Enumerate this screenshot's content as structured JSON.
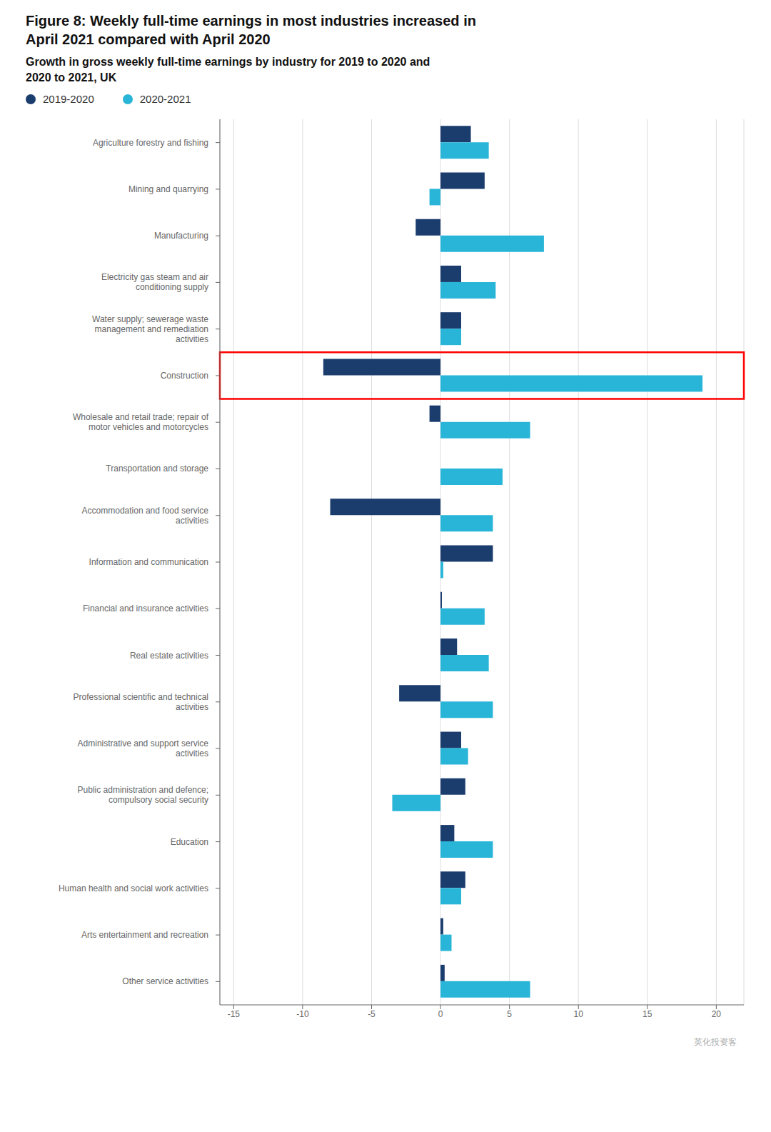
{
  "chart_data": {
    "type": "bar",
    "orientation": "horizontal",
    "title": "Figure 8: Weekly full-time earnings in most industries increased in\nApril 2021 compared with April 2020",
    "subtitle": "Growth in gross weekly full-time earnings by industry for 2019 to 2020 and\n2020 to 2021, UK",
    "categories": [
      "Agriculture forestry and fishing",
      "Mining and quarrying",
      "Manufacturing",
      "Electricity gas steam and air\nconditioning supply",
      "Water supply; sewerage waste\nmanagement and remediation\nactivities",
      "Construction",
      "Wholesale and retail trade; repair of\nmotor vehicles and motorcycles",
      "Transportation and storage",
      "Accommodation and food service\nactivities",
      "Information and communication",
      "Financial and insurance activities",
      "Real estate activities",
      "Professional scientific and technical\nactivities",
      "Administrative and support service\nactivities",
      "Public administration and defence;\ncompulsory social security",
      "Education",
      "Human health and social work activities",
      "Arts entertainment and recreation",
      "Other service activities"
    ],
    "series": [
      {
        "name": "2019-2020",
        "color": "#1b3d6e",
        "values": [
          2.2,
          3.2,
          -1.8,
          1.5,
          1.5,
          -8.5,
          -0.8,
          0.0,
          -8.0,
          3.8,
          0.1,
          1.2,
          -3.0,
          1.5,
          1.8,
          1.0,
          1.8,
          0.2,
          0.3
        ]
      },
      {
        "name": "2020-2021",
        "color": "#29b5d8",
        "values": [
          3.5,
          -0.8,
          7.5,
          4.0,
          1.5,
          19.0,
          6.5,
          4.5,
          3.8,
          0.2,
          3.2,
          3.5,
          3.8,
          2.0,
          -3.5,
          3.8,
          1.5,
          0.8,
          6.5
        ]
      }
    ],
    "xlim": [
      -16,
      22
    ],
    "xticks": [
      -15,
      -10,
      -5,
      0,
      5,
      10,
      15,
      20
    ],
    "grid": true,
    "legend": "upper left",
    "highlight": "Construction",
    "annotations": [
      "英化投资客"
    ]
  }
}
